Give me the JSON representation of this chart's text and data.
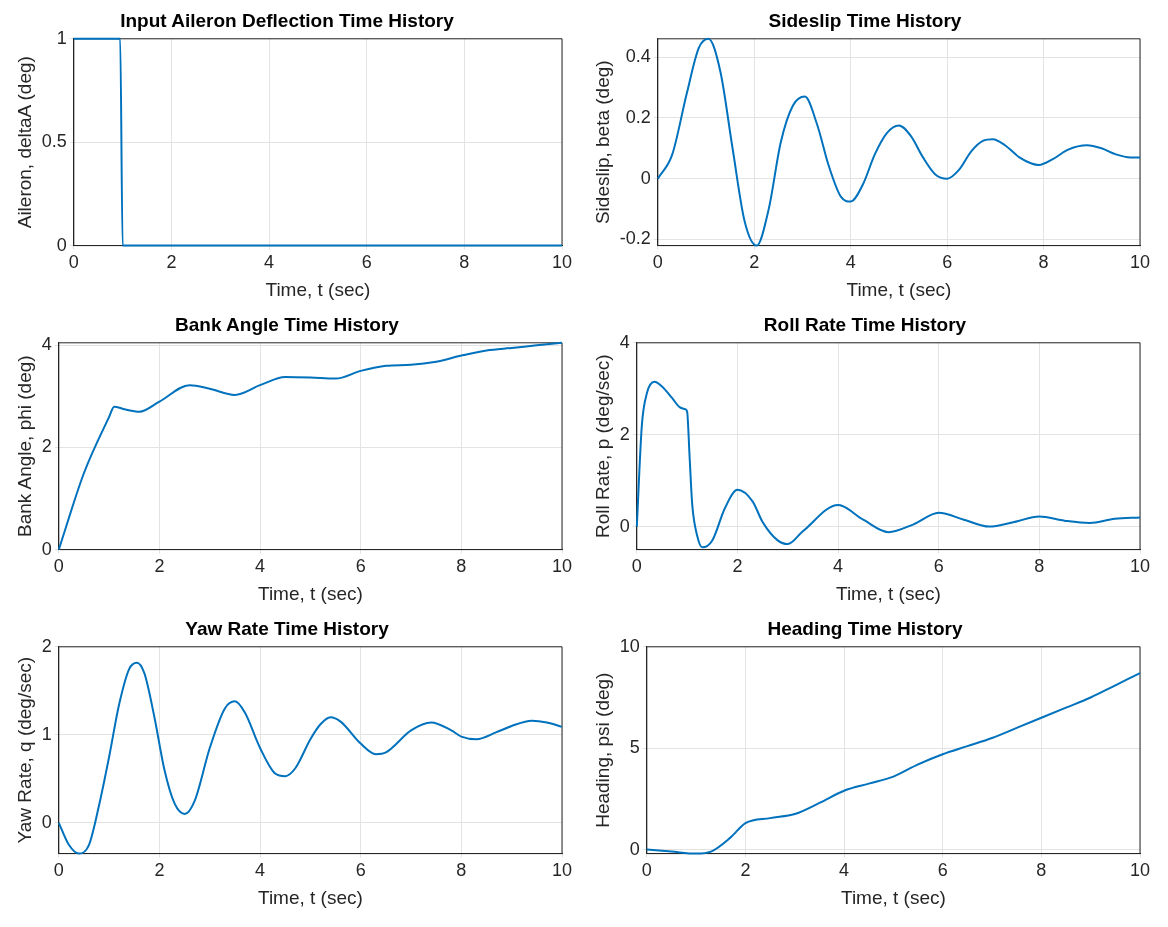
{
  "chart_data": [
    {
      "type": "line",
      "title": "Input Aileron Deflection Time History",
      "xlabel": "Time, t (sec)",
      "ylabel": "Aileron, deltaA (deg)",
      "grid": true,
      "xlim": [
        0,
        10
      ],
      "xticks": [
        0,
        2,
        4,
        6,
        8,
        10
      ],
      "ylim": [
        0,
        1
      ],
      "yticks": [
        0,
        0.5,
        1
      ],
      "series": [
        {
          "color": "#0072bd",
          "x": [
            0,
            0.95,
            1.0,
            10
          ],
          "values": [
            1,
            1,
            0,
            0
          ]
        }
      ]
    },
    {
      "type": "line",
      "title": "Sideslip Time History",
      "xlabel": "Time, t (sec)",
      "ylabel": "Sideslip, beta (deg)",
      "grid": true,
      "xlim": [
        0,
        10
      ],
      "xticks": [
        0,
        2,
        4,
        6,
        8,
        10
      ],
      "ylim": [
        -0.22,
        0.46
      ],
      "yticks": [
        -0.2,
        0,
        0.2,
        0.4
      ],
      "series": [
        {
          "color": "#0072bd",
          "x": [
            0,
            0.3,
            0.6,
            0.85,
            1.05,
            1.3,
            1.55,
            1.8,
            2.05,
            2.3,
            2.55,
            2.8,
            3.05,
            3.3,
            3.55,
            3.8,
            4.0,
            4.25,
            4.5,
            4.75,
            5.0,
            5.25,
            5.5,
            5.75,
            6.0,
            6.25,
            6.5,
            6.75,
            6.95,
            7.2,
            7.5,
            7.75,
            7.9,
            8.2,
            8.5,
            8.9,
            9.2,
            9.5,
            9.8,
            10
          ],
          "values": [
            0,
            0.08,
            0.28,
            0.43,
            0.46,
            0.35,
            0.1,
            -0.14,
            -0.22,
            -0.1,
            0.12,
            0.24,
            0.27,
            0.18,
            0.04,
            -0.06,
            -0.075,
            -0.02,
            0.08,
            0.15,
            0.175,
            0.14,
            0.07,
            0.015,
            0.0,
            0.03,
            0.09,
            0.125,
            0.13,
            0.11,
            0.07,
            0.05,
            0.045,
            0.065,
            0.095,
            0.11,
            0.1,
            0.08,
            0.07,
            0.07
          ]
        }
      ]
    },
    {
      "type": "line",
      "title": "Bank Angle Time History",
      "xlabel": "Time, t (sec)",
      "ylabel": "Bank Angle, phi (deg)",
      "grid": true,
      "xlim": [
        0,
        10
      ],
      "xticks": [
        0,
        2,
        4,
        6,
        8,
        10
      ],
      "ylim": [
        0,
        4.05
      ],
      "yticks": [
        0,
        2,
        4
      ],
      "series": [
        {
          "color": "#0072bd",
          "x": [
            0,
            0.5,
            1.0,
            1.1,
            1.3,
            1.6,
            2.0,
            2.6,
            3.0,
            3.5,
            4.0,
            4.5,
            5.0,
            5.5,
            6.0,
            6.5,
            7.0,
            7.5,
            8.0,
            8.5,
            9.0,
            9.5,
            10
          ],
          "values": [
            0,
            1.5,
            2.6,
            2.8,
            2.75,
            2.7,
            2.9,
            3.22,
            3.15,
            3.03,
            3.22,
            3.38,
            3.37,
            3.35,
            3.5,
            3.6,
            3.62,
            3.68,
            3.8,
            3.9,
            3.95,
            4.0,
            4.05
          ]
        }
      ]
    },
    {
      "type": "line",
      "title": "Roll Rate Time History",
      "xlabel": "Time, t (sec)",
      "ylabel": "Roll Rate, p (deg/sec)",
      "grid": true,
      "xlim": [
        0,
        10
      ],
      "xticks": [
        0,
        2,
        4,
        6,
        8,
        10
      ],
      "ylim": [
        -0.5,
        4
      ],
      "yticks": [
        0,
        2,
        4
      ],
      "series": [
        {
          "color": "#0072bd",
          "x": [
            0,
            0.1,
            0.2,
            0.35,
            0.5,
            0.7,
            0.85,
            0.97,
            1.0,
            1.05,
            1.1,
            1.2,
            1.3,
            1.5,
            1.75,
            2.0,
            2.3,
            2.5,
            2.8,
            3.0,
            3.3,
            4.0,
            4.5,
            5.0,
            5.5,
            6.0,
            6.5,
            7.0,
            7.5,
            8.0,
            8.5,
            9.0,
            9.5,
            10
          ],
          "values": [
            0,
            2.2,
            2.9,
            3.15,
            3.05,
            2.8,
            2.6,
            2.55,
            2.5,
            1.5,
            0.5,
            -0.2,
            -0.45,
            -0.3,
            0.4,
            0.8,
            0.55,
            0.1,
            -0.3,
            -0.38,
            -0.1,
            0.47,
            0.15,
            -0.12,
            0.05,
            0.3,
            0.15,
            0.0,
            0.1,
            0.22,
            0.13,
            0.08,
            0.17,
            0.2
          ]
        }
      ]
    },
    {
      "type": "line",
      "title": "Yaw Rate Time History",
      "xlabel": "Time, t (sec)",
      "ylabel": "Yaw Rate, q (deg/sec)",
      "grid": true,
      "xlim": [
        0,
        10
      ],
      "xticks": [
        0,
        2,
        4,
        6,
        8,
        10
      ],
      "ylim": [
        -0.35,
        2
      ],
      "yticks": [
        0,
        1,
        2
      ],
      "series": [
        {
          "color": "#0072bd",
          "x": [
            0,
            0.2,
            0.4,
            0.6,
            0.8,
            1.0,
            1.2,
            1.4,
            1.55,
            1.7,
            1.9,
            2.1,
            2.3,
            2.5,
            2.7,
            3.0,
            3.3,
            3.5,
            3.7,
            4.0,
            4.3,
            4.5,
            4.7,
            5.0,
            5.2,
            5.4,
            5.6,
            6.0,
            6.3,
            6.5,
            7.0,
            7.4,
            7.8,
            8.0,
            8.3,
            8.7,
            9.0,
            9.4,
            9.7,
            10
          ],
          "values": [
            0,
            -0.25,
            -0.35,
            -0.25,
            0.2,
            0.75,
            1.35,
            1.75,
            1.82,
            1.7,
            1.2,
            0.6,
            0.22,
            0.1,
            0.25,
            0.85,
            1.3,
            1.38,
            1.25,
            0.85,
            0.56,
            0.53,
            0.62,
            0.95,
            1.12,
            1.2,
            1.15,
            0.9,
            0.78,
            0.8,
            1.05,
            1.14,
            1.05,
            0.98,
            0.95,
            1.03,
            1.1,
            1.16,
            1.14,
            1.09
          ]
        }
      ]
    },
    {
      "type": "line",
      "title": "Heading Time History",
      "xlabel": "Time, t (sec)",
      "ylabel": "Heading, psi (deg)",
      "grid": true,
      "xlim": [
        0,
        10
      ],
      "xticks": [
        0,
        2,
        4,
        6,
        8,
        10
      ],
      "ylim": [
        -0.2,
        10
      ],
      "yticks": [
        0,
        5,
        10
      ],
      "series": [
        {
          "color": "#0072bd",
          "x": [
            0,
            0.5,
            1.0,
            1.3,
            1.7,
            2.0,
            2.5,
            3.0,
            3.5,
            4.0,
            4.5,
            5.0,
            5.5,
            6.0,
            6.5,
            7.0,
            7.5,
            8.0,
            8.5,
            9.0,
            9.5,
            10
          ],
          "values": [
            0,
            -0.1,
            -0.2,
            -0.1,
            0.6,
            1.3,
            1.55,
            1.75,
            2.3,
            2.9,
            3.25,
            3.6,
            4.2,
            4.7,
            5.1,
            5.5,
            6.0,
            6.5,
            7.0,
            7.5,
            8.1,
            8.7
          ]
        }
      ]
    }
  ]
}
